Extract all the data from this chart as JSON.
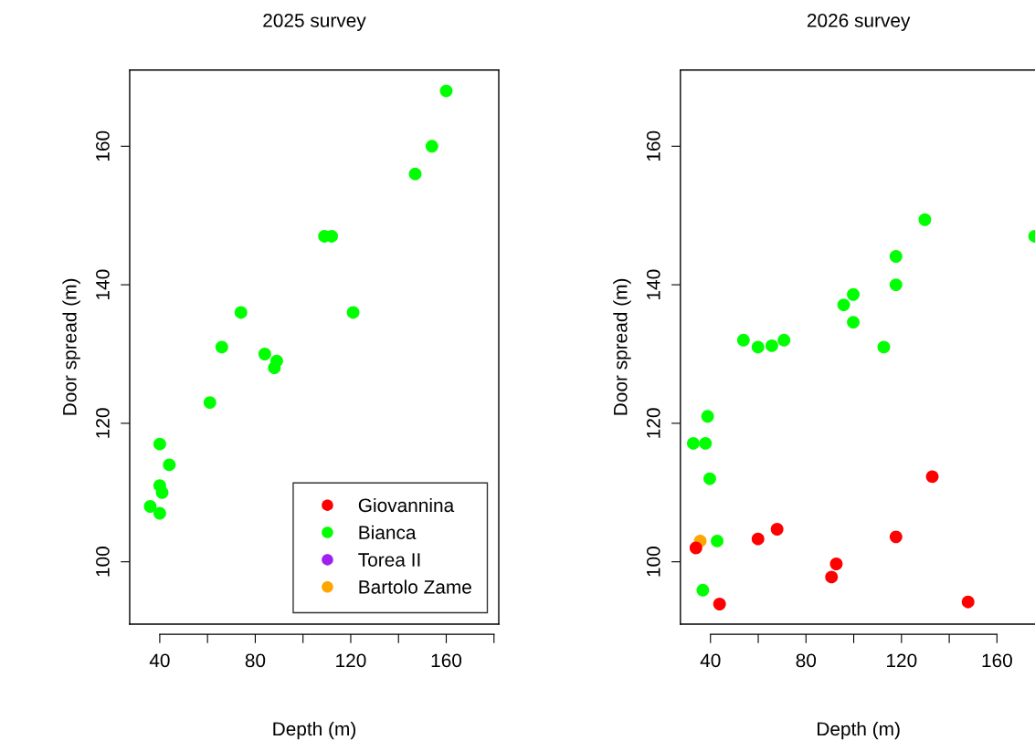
{
  "chart_data": [
    {
      "type": "scatter",
      "title": "2025 survey",
      "xlabel": "Depth (m)",
      "ylabel": "Door spread (m)",
      "xlim": [
        27.4,
        182
      ],
      "ylim": [
        91,
        171
      ],
      "xticks": [
        40,
        {
          "value": 60,
          "label": null
        },
        80,
        {
          "value": 100,
          "label": null
        },
        120,
        {
          "value": 140,
          "label": null
        },
        160,
        {
          "value": 180,
          "label": null
        }
      ],
      "yticks": [
        100,
        120,
        140,
        160
      ],
      "grid": false,
      "legend": "bottom right",
      "marker": "circle",
      "series": [
        {
          "name": "Giovannina",
          "color": "#ff0000"
        },
        {
          "name": "Bianca",
          "color": "#00ff00",
          "x": [
            160,
            154,
            147,
            109,
            112,
            74,
            121,
            66,
            84,
            89,
            88,
            61,
            40,
            44,
            40,
            41,
            36,
            40
          ],
          "values": [
            168,
            160,
            156,
            147,
            147,
            136,
            136,
            131,
            130,
            129,
            128,
            123,
            117,
            114,
            111,
            110,
            108,
            107
          ]
        },
        {
          "name": "Torea II",
          "color": "#a020f0"
        },
        {
          "name": "Bartolo Zame",
          "color": "#ffa500"
        }
      ]
    },
    {
      "type": "scatter",
      "title": "2026 survey",
      "xlabel": "Depth (m)",
      "ylabel": "Door spread (m)",
      "xlim": [
        27.4,
        176.5
      ],
      "ylim": [
        91,
        171
      ],
      "xticks": [
        40,
        {
          "value": 60,
          "label": null
        },
        80,
        {
          "value": 100,
          "label": null
        },
        120,
        {
          "value": 140,
          "label": null
        },
        160
      ],
      "yticks": [
        100,
        120,
        140,
        160
      ],
      "grid": false,
      "marker": "circle",
      "series": [
        {
          "color": "#00ff00",
          "x": [
            129.8,
            175.8,
            117.7,
            117.7,
            99.8,
            95.8,
            99.8,
            112.6,
            53.8,
            59.9,
            65.7,
            70.8,
            38.8,
            32.8,
            37.9,
            39.7,
            42.8,
            36.8
          ],
          "values": [
            149.4,
            147,
            144.1,
            140,
            138.6,
            137.1,
            134.6,
            131,
            132,
            131,
            131.2,
            132,
            121,
            117.1,
            117.1,
            112,
            103,
            95.9
          ]
        },
        {
          "color": "#ffa500",
          "x": [
            35.7
          ],
          "values": [
            103
          ]
        },
        {
          "color": "#ff0000",
          "x": [
            33.9,
            43.8,
            59.9,
            67.9,
            92.7,
            90.7,
            117.7,
            132.9,
            147.9
          ],
          "values": [
            102,
            93.9,
            103.3,
            104.7,
            99.7,
            97.8,
            103.6,
            112.3,
            94.2
          ]
        }
      ]
    }
  ]
}
